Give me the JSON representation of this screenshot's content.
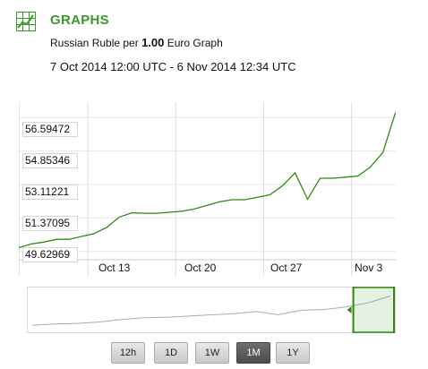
{
  "header": {
    "title": "GRAPHS",
    "icon": "chart-grid-icon",
    "subtitle_prefix": "Russian Ruble per ",
    "subtitle_amount": "1.00",
    "subtitle_suffix": " Euro Graph",
    "date_range": "7 Oct 2014 12:00 UTC - 6 Nov 2014 12:34 UTC"
  },
  "colors": {
    "accent": "#3a9a2a",
    "line": "#2f8a10",
    "grid": "#e6e6e6",
    "navigator_line": "#aaaaaa",
    "handle": "#2f8a10"
  },
  "chart_data": {
    "type": "line",
    "title": "",
    "xlabel": "",
    "ylabel": "",
    "x_ticks": [
      "Oct 13",
      "Oct 20",
      "Oct 27",
      "Nov 3"
    ],
    "y_ticks": [
      "49.62969",
      "51.37095",
      "53.11221",
      "54.85346",
      "56.59472"
    ],
    "ylim": [
      49.2,
      57.4
    ],
    "xlim": [
      "2014-10-07 12:00",
      "2014-11-06 12:34"
    ],
    "grid": true,
    "legend": "none",
    "series": [
      {
        "x": [
          "2014-10-07",
          "2014-10-08",
          "2014-10-09",
          "2014-10-10",
          "2014-10-11",
          "2014-10-13",
          "2014-10-14",
          "2014-10-15",
          "2014-10-16",
          "2014-10-17",
          "2014-10-18",
          "2014-10-20",
          "2014-10-21",
          "2014-10-22",
          "2014-10-23",
          "2014-10-24",
          "2014-10-25",
          "2014-10-27",
          "2014-10-28",
          "2014-10-29",
          "2014-10-30",
          "2014-10-31",
          "2014-11-01",
          "2014-11-03",
          "2014-11-04",
          "2014-11-05",
          "2014-11-06"
        ],
        "values": [
          49.83,
          50.02,
          50.12,
          50.26,
          50.26,
          50.56,
          50.88,
          51.42,
          51.64,
          51.62,
          51.62,
          51.72,
          51.84,
          52.03,
          52.22,
          52.32,
          52.32,
          52.58,
          53.05,
          53.72,
          52.35,
          53.44,
          53.44,
          53.55,
          54.02,
          54.78,
          56.86
        ]
      }
    ]
  },
  "navigator": {
    "series": [
      49.83,
      50.1,
      50.26,
      50.6,
      51.2,
      51.62,
      51.72,
      52.03,
      52.32,
      52.58,
      53.1,
      52.35,
      53.44,
      53.6,
      54.2,
      55.2,
      56.86
    ],
    "selection": [
      0.885,
      1.0
    ]
  },
  "range_buttons": {
    "items": [
      "12h",
      "1D",
      "1W",
      "1M",
      "1Y"
    ],
    "active": "1M"
  }
}
